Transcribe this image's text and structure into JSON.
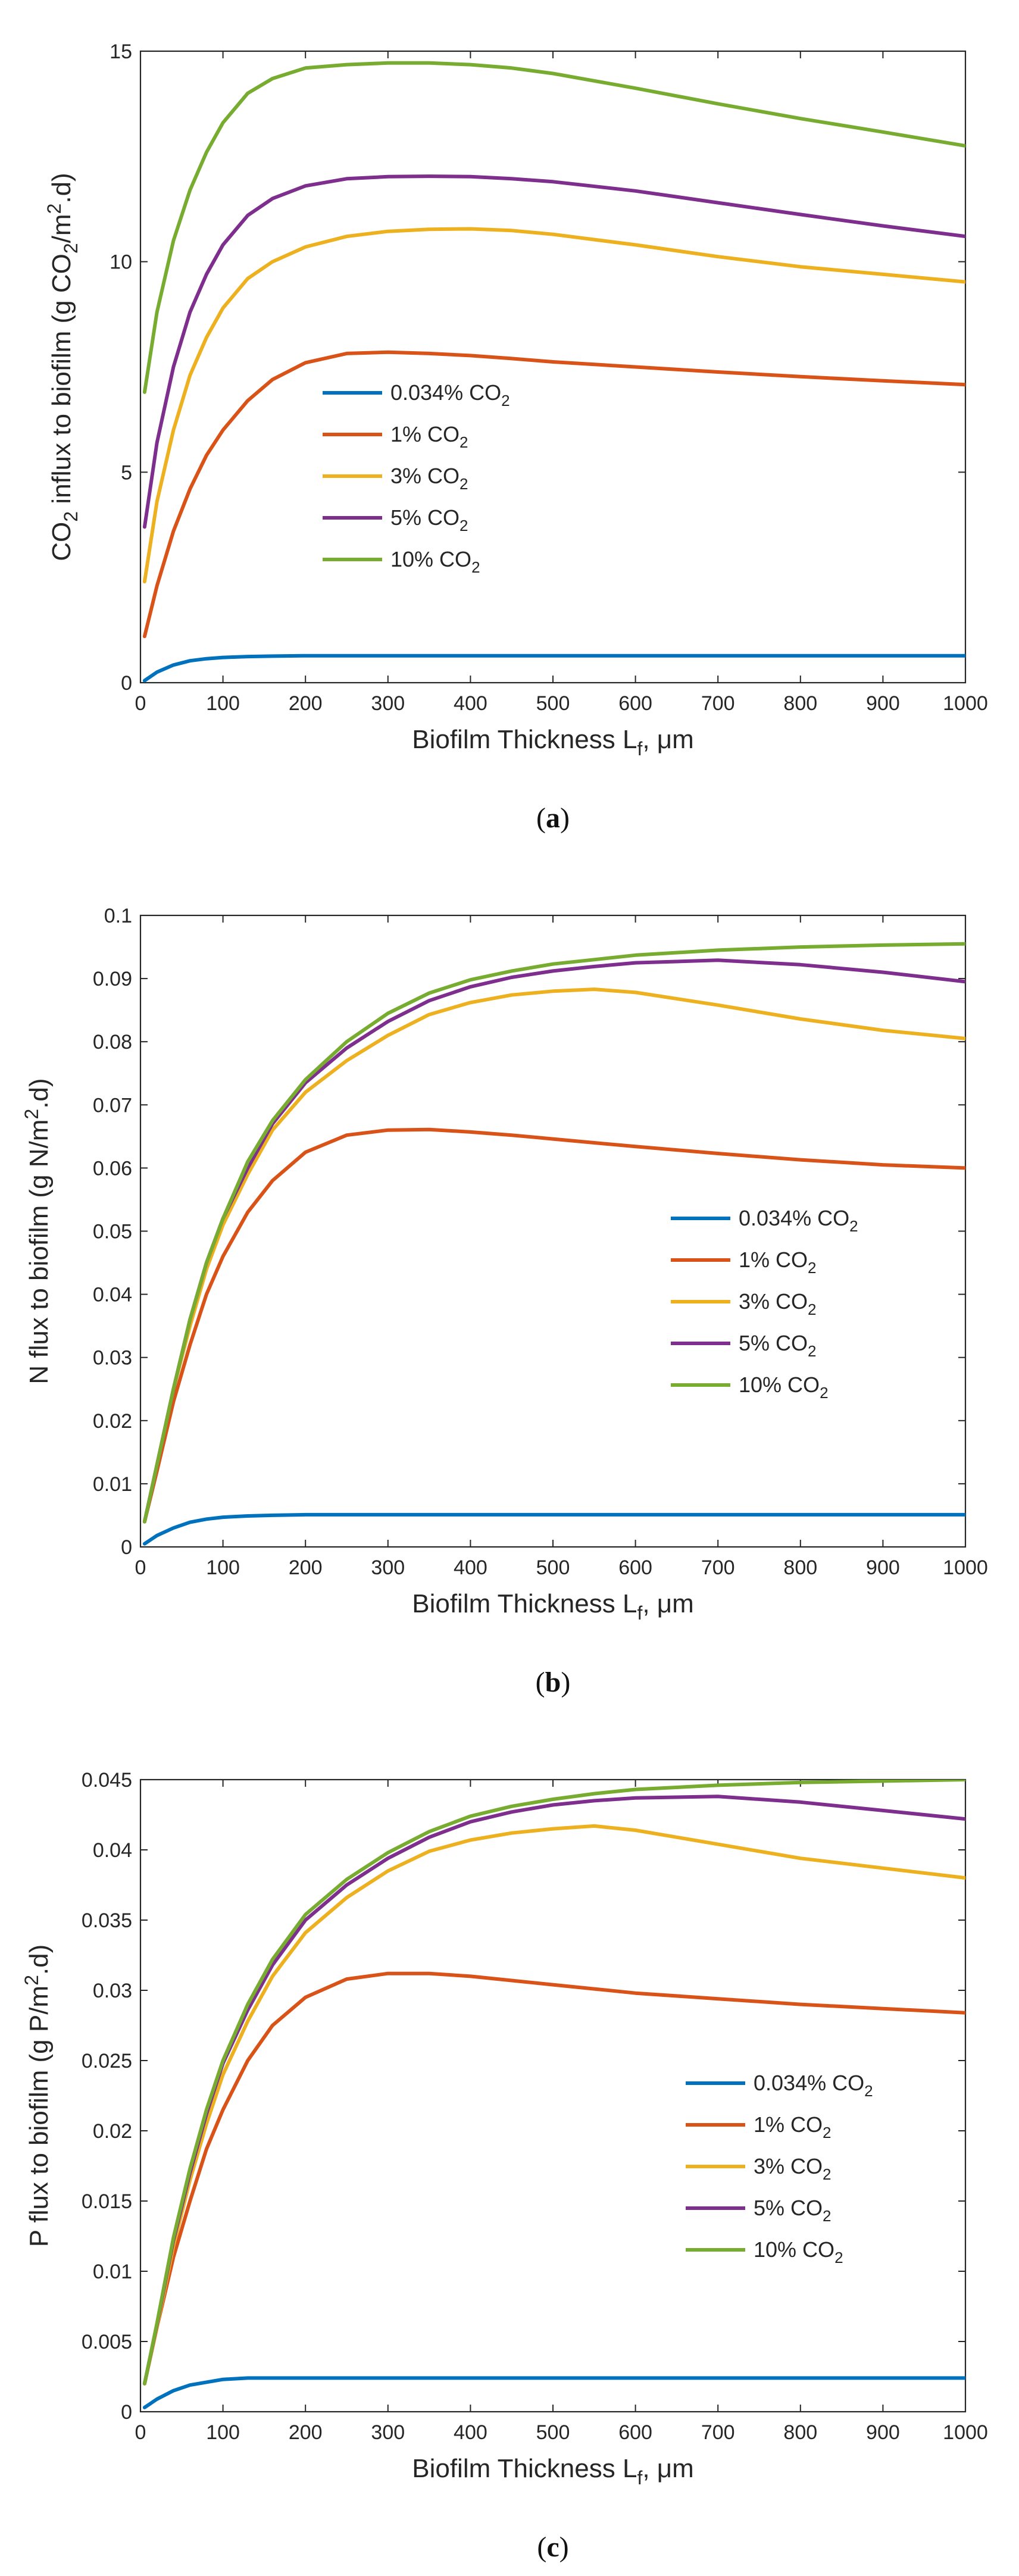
{
  "chart_data": [
    {
      "type": "line",
      "caption": "(a)",
      "caption_letter": "a",
      "ylabel_parts": [
        "CO",
        "2",
        " influx to biofilm (g CO",
        "2",
        "/m",
        "2",
        ".d)"
      ],
      "xlabel_parts": [
        "Biofilm Thickness L",
        "f",
        ", μm"
      ],
      "xlim": [
        0,
        1000
      ],
      "ylim": [
        0,
        15
      ],
      "xticks": [
        0,
        100,
        200,
        300,
        400,
        500,
        600,
        700,
        800,
        900,
        1000
      ],
      "xtick_labels": [
        "0",
        "100",
        "200",
        "300",
        "400",
        "500",
        "600",
        "700",
        "800",
        "900",
        "1000"
      ],
      "yticks": [
        0,
        5,
        10,
        15
      ],
      "ytick_labels": [
        "0",
        "5",
        "10",
        "15"
      ],
      "legend_placement": "center",
      "x": [
        5,
        20,
        40,
        60,
        80,
        100,
        130,
        160,
        200,
        250,
        300,
        350,
        400,
        450,
        500,
        600,
        700,
        800,
        900,
        1000
      ],
      "series": [
        {
          "name": "0.034% CO2",
          "label_main": "0.034% CO",
          "label_sub": "2",
          "color": "#0072BD",
          "values": [
            0.05,
            0.25,
            0.42,
            0.52,
            0.57,
            0.6,
            0.62,
            0.63,
            0.64,
            0.64,
            0.64,
            0.64,
            0.64,
            0.64,
            0.64,
            0.64,
            0.64,
            0.64,
            0.64,
            0.64
          ]
        },
        {
          "name": "1% CO2",
          "label_main": "1% CO",
          "label_sub": "2",
          "color": "#D95319",
          "values": [
            1.1,
            2.3,
            3.6,
            4.6,
            5.4,
            6.0,
            6.7,
            7.2,
            7.6,
            7.82,
            7.85,
            7.82,
            7.77,
            7.7,
            7.62,
            7.5,
            7.38,
            7.27,
            7.17,
            7.08
          ]
        },
        {
          "name": "3% CO2",
          "label_main": "3% CO",
          "label_sub": "2",
          "color": "#EDB120",
          "values": [
            2.4,
            4.3,
            6.0,
            7.3,
            8.2,
            8.9,
            9.6,
            10.0,
            10.35,
            10.6,
            10.72,
            10.77,
            10.78,
            10.74,
            10.65,
            10.4,
            10.12,
            9.88,
            9.7,
            9.52
          ]
        },
        {
          "name": "5% CO2",
          "label_main": "5% CO",
          "label_sub": "2",
          "color": "#7E2F8E",
          "values": [
            3.7,
            5.7,
            7.5,
            8.8,
            9.7,
            10.4,
            11.1,
            11.5,
            11.8,
            11.97,
            12.02,
            12.03,
            12.02,
            11.97,
            11.9,
            11.68,
            11.4,
            11.12,
            10.85,
            10.6
          ]
        },
        {
          "name": "10% CO2",
          "label_main": "10% CO",
          "label_sub": "2",
          "color": "#77AC30",
          "values": [
            6.9,
            8.8,
            10.5,
            11.7,
            12.6,
            13.3,
            14.0,
            14.35,
            14.6,
            14.68,
            14.72,
            14.72,
            14.68,
            14.6,
            14.47,
            14.12,
            13.75,
            13.4,
            13.08,
            12.75
          ]
        }
      ]
    },
    {
      "type": "line",
      "caption": "(b)",
      "caption_letter": "b",
      "ylabel_parts": [
        "N flux to biofilm (g N/m",
        "2",
        ".d)"
      ],
      "xlabel_parts": [
        "Biofilm Thickness L",
        "f",
        ", μm"
      ],
      "xlim": [
        0,
        1000
      ],
      "ylim": [
        0,
        0.1
      ],
      "xticks": [
        0,
        100,
        200,
        300,
        400,
        500,
        600,
        700,
        800,
        900,
        1000
      ],
      "xtick_labels": [
        "0",
        "100",
        "200",
        "300",
        "400",
        "500",
        "600",
        "700",
        "800",
        "900",
        "1000"
      ],
      "yticks": [
        0,
        0.01,
        0.02,
        0.03,
        0.04,
        0.05,
        0.06,
        0.07,
        0.08,
        0.09,
        0.1
      ],
      "ytick_labels": [
        "0",
        "0.01",
        "0.02",
        "0.03",
        "0.04",
        "0.05",
        "0.06",
        "0.07",
        "0.08",
        "0.09",
        "0.1"
      ],
      "legend_placement": "center-right",
      "x": [
        5,
        20,
        40,
        60,
        80,
        100,
        130,
        160,
        200,
        250,
        300,
        350,
        400,
        450,
        500,
        550,
        600,
        700,
        800,
        900,
        1000
      ],
      "series": [
        {
          "name": "0.034% CO2",
          "label_main": "0.034% CO",
          "label_sub": "2",
          "color": "#0072BD",
          "values": [
            0.0005,
            0.0018,
            0.003,
            0.0039,
            0.0044,
            0.0047,
            0.0049,
            0.005,
            0.0051,
            0.0051,
            0.0051,
            0.0051,
            0.0051,
            0.0051,
            0.0051,
            0.0051,
            0.0051,
            0.0051,
            0.0051,
            0.0051,
            0.0051
          ]
        },
        {
          "name": "1% CO2",
          "label_main": "1% CO",
          "label_sub": "2",
          "color": "#D95319",
          "values": [
            0.004,
            0.012,
            0.023,
            0.032,
            0.04,
            0.046,
            0.053,
            0.058,
            0.0625,
            0.0652,
            0.066,
            0.0661,
            0.0657,
            0.0652,
            0.0646,
            0.064,
            0.0634,
            0.0623,
            0.0613,
            0.0605,
            0.06
          ]
        },
        {
          "name": "3% CO2",
          "label_main": "3% CO",
          "label_sub": "2",
          "color": "#EDB120",
          "values": [
            0.004,
            0.013,
            0.025,
            0.035,
            0.044,
            0.051,
            0.059,
            0.066,
            0.072,
            0.077,
            0.081,
            0.0843,
            0.0862,
            0.0874,
            0.088,
            0.0883,
            0.0878,
            0.0858,
            0.0836,
            0.0818,
            0.0805
          ]
        },
        {
          "name": "5% CO2",
          "label_main": "5% CO",
          "label_sub": "2",
          "color": "#7E2F8E",
          "values": [
            0.004,
            0.013,
            0.025,
            0.036,
            0.045,
            0.052,
            0.06,
            0.067,
            0.0735,
            0.079,
            0.0832,
            0.0865,
            0.0887,
            0.0902,
            0.0912,
            0.0919,
            0.0925,
            0.0929,
            0.0922,
            0.091,
            0.0895
          ]
        },
        {
          "name": "10% CO2",
          "label_main": "10% CO",
          "label_sub": "2",
          "color": "#77AC30",
          "values": [
            0.004,
            0.013,
            0.025,
            0.036,
            0.045,
            0.052,
            0.061,
            0.0675,
            0.074,
            0.08,
            0.0845,
            0.0877,
            0.0898,
            0.0912,
            0.0923,
            0.093,
            0.0937,
            0.0945,
            0.095,
            0.0953,
            0.0955
          ]
        }
      ]
    },
    {
      "type": "line",
      "caption": "(c)",
      "caption_letter": "c",
      "ylabel_parts": [
        "P flux to biofilm (g P/m",
        "2",
        ".d)"
      ],
      "xlabel_parts": [
        "Biofilm Thickness L",
        "f",
        ", μm"
      ],
      "xlim": [
        0,
        1000
      ],
      "ylim": [
        0,
        0.045
      ],
      "xticks": [
        0,
        100,
        200,
        300,
        400,
        500,
        600,
        700,
        800,
        900,
        1000
      ],
      "xtick_labels": [
        "0",
        "100",
        "200",
        "300",
        "400",
        "500",
        "600",
        "700",
        "800",
        "900",
        "1000"
      ],
      "yticks": [
        0,
        0.005,
        0.01,
        0.015,
        0.02,
        0.025,
        0.03,
        0.035,
        0.04,
        0.045
      ],
      "ytick_labels": [
        "0",
        "0.005",
        "0.01",
        "0.015",
        "0.02",
        "0.025",
        "0.03",
        "0.035",
        "0.04",
        "0.045"
      ],
      "legend_placement": "center-right",
      "x": [
        5,
        20,
        40,
        60,
        80,
        100,
        130,
        160,
        200,
        250,
        300,
        350,
        400,
        450,
        500,
        550,
        600,
        700,
        800,
        900,
        1000
      ],
      "series": [
        {
          "name": "0.034% CO2",
          "label_main": "0.034% CO",
          "label_sub": "2",
          "color": "#0072BD",
          "values": [
            0.0003,
            0.0009,
            0.0015,
            0.0019,
            0.0021,
            0.0023,
            0.0024,
            0.0024,
            0.0024,
            0.0024,
            0.0024,
            0.0024,
            0.0024,
            0.0024,
            0.0024,
            0.0024,
            0.0024,
            0.0024,
            0.0024,
            0.0024,
            0.0024
          ]
        },
        {
          "name": "1% CO2",
          "label_main": "1% CO",
          "label_sub": "2",
          "color": "#D95319",
          "values": [
            0.002,
            0.006,
            0.011,
            0.015,
            0.0187,
            0.0215,
            0.025,
            0.0275,
            0.0295,
            0.0308,
            0.0312,
            0.0312,
            0.031,
            0.0307,
            0.0304,
            0.0301,
            0.0298,
            0.0294,
            0.029,
            0.0287,
            0.0284
          ]
        },
        {
          "name": "3% CO2",
          "label_main": "3% CO",
          "label_sub": "2",
          "color": "#EDB120",
          "values": [
            0.002,
            0.006,
            0.0118,
            0.0165,
            0.0205,
            0.024,
            0.0278,
            0.031,
            0.0341,
            0.0366,
            0.0385,
            0.0399,
            0.0407,
            0.0412,
            0.0415,
            0.0417,
            0.0414,
            0.0404,
            0.0394,
            0.0387,
            0.038
          ]
        },
        {
          "name": "5% CO2",
          "label_main": "5% CO",
          "label_sub": "2",
          "color": "#7E2F8E",
          "values": [
            0.002,
            0.0062,
            0.0122,
            0.017,
            0.0212,
            0.0248,
            0.0286,
            0.0318,
            0.035,
            0.0375,
            0.0394,
            0.0409,
            0.042,
            0.0427,
            0.0432,
            0.0435,
            0.0437,
            0.0438,
            0.0434,
            0.0428,
            0.0422
          ]
        },
        {
          "name": "10% CO2",
          "label_main": "10% CO",
          "label_sub": "2",
          "color": "#77AC30",
          "values": [
            0.002,
            0.0063,
            0.0124,
            0.0173,
            0.0215,
            0.025,
            0.029,
            0.0322,
            0.0354,
            0.0379,
            0.0398,
            0.0413,
            0.0424,
            0.0431,
            0.0436,
            0.044,
            0.0443,
            0.0446,
            0.0448,
            0.0449,
            0.045
          ]
        }
      ]
    }
  ]
}
